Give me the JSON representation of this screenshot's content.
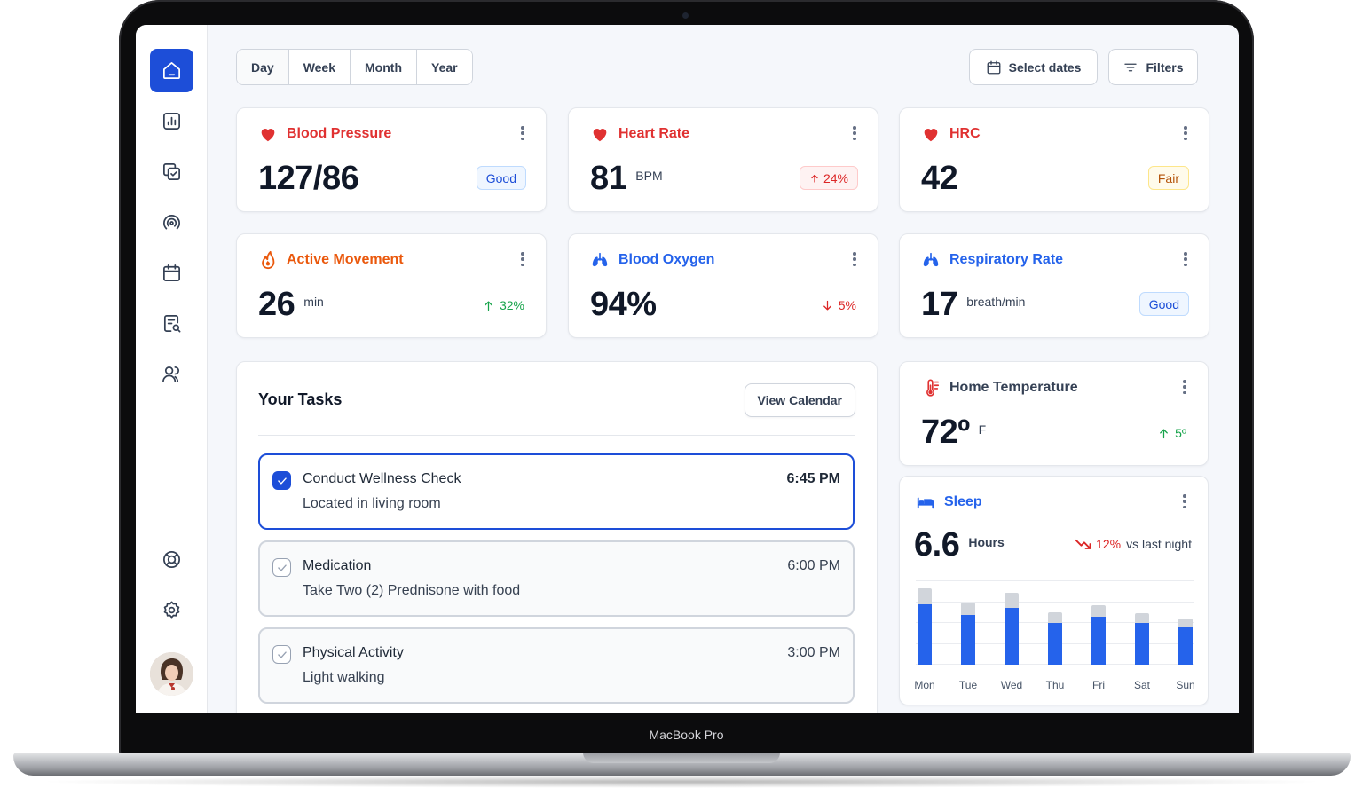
{
  "device": {
    "label": "MacBook Pro"
  },
  "sidebar": {
    "items": [
      {
        "icon": "home-icon",
        "active": true
      },
      {
        "icon": "bar-chart-icon"
      },
      {
        "icon": "tasks-icon"
      },
      {
        "icon": "signal-icon"
      },
      {
        "icon": "calendar-icon"
      },
      {
        "icon": "report-search-icon"
      },
      {
        "icon": "users-icon"
      }
    ],
    "bottom": [
      {
        "icon": "support-icon"
      },
      {
        "icon": "settings-icon"
      }
    ],
    "avatar": "user-avatar"
  },
  "toolbar": {
    "ranges": [
      "Day",
      "Week",
      "Month",
      "Year"
    ],
    "selected_range": "Day",
    "select_dates": "Select dates",
    "filters": "Filters"
  },
  "metrics": {
    "blood_pressure": {
      "title": "Blood Pressure",
      "value": "127/86",
      "badge": "Good",
      "color": "#e03131"
    },
    "heart_rate": {
      "title": "Heart Rate",
      "value": "81",
      "unit": "BPM",
      "trend": "24%",
      "color": "#e03131"
    },
    "hrc": {
      "title": "HRC",
      "value": "42",
      "badge": "Fair",
      "color": "#e03131"
    },
    "active_movement": {
      "title": "Active Movement",
      "value": "26",
      "unit": "min",
      "trend": "32%",
      "color": "#ea580c"
    },
    "blood_oxygen": {
      "title": "Blood Oxygen",
      "value": "94%",
      "trend": "5%",
      "color": "#2563eb"
    },
    "respiratory_rate": {
      "title": "Respiratory Rate",
      "value": "17",
      "unit": "breath/min",
      "badge": "Good",
      "color": "#2563eb"
    },
    "home_temperature": {
      "title": "Home Temperature",
      "value": "72º",
      "unit": "F",
      "trend": "5º",
      "color": "#e03131"
    }
  },
  "tasks": {
    "title": "Your Tasks",
    "view_calendar": "View Calendar",
    "items": [
      {
        "name": "Conduct Wellness Check",
        "desc": "Located in living room",
        "time": "6:45 PM",
        "checked": true
      },
      {
        "name": "Medication",
        "desc": "Take Two (2) Prednisone with food",
        "time": "6:00 PM",
        "checked": false
      },
      {
        "name": "Physical Activity",
        "desc": "Light walking",
        "time": "3:00 PM",
        "checked": false
      }
    ]
  },
  "sleep": {
    "title": "Sleep",
    "value": "6.6",
    "unit": "Hours",
    "change": "12%",
    "comparison": "vs last night"
  },
  "chart_data": {
    "type": "bar",
    "categories": [
      "Mon",
      "Tue",
      "Wed",
      "Thu",
      "Fri",
      "Sat",
      "Sun"
    ],
    "series": [
      {
        "values": [
          7.2,
          6.0,
          6.8,
          5.0,
          5.7,
          5.0,
          4.5
        ]
      },
      {
        "values": [
          1.9,
          1.5,
          1.8,
          1.3,
          1.4,
          1.2,
          1.0
        ]
      }
    ],
    "stacked": true,
    "ylim": [
      0,
      10
    ],
    "grid": true,
    "colors": [
      "#2563eb",
      "#d1d5db"
    ]
  }
}
